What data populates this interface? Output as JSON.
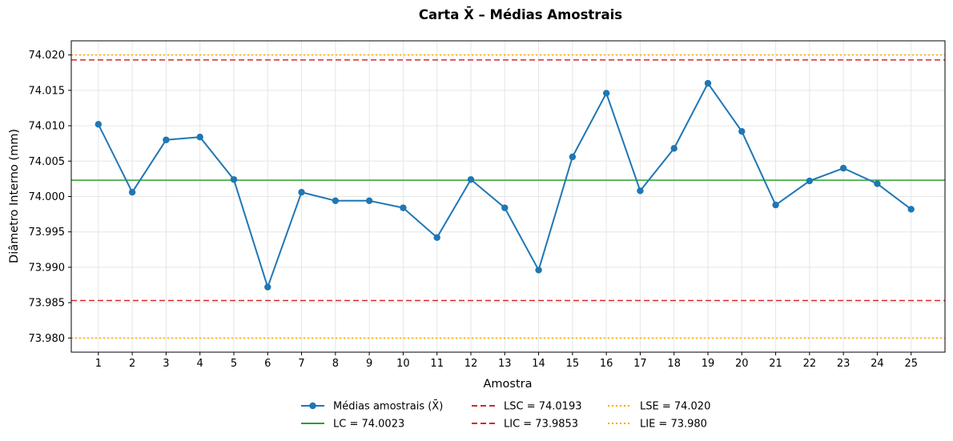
{
  "chart_data": {
    "type": "line",
    "title": "Carta X̄ – Médias Amostrais",
    "xlabel": "Amostra",
    "ylabel": "Diâmetro Interno (mm)",
    "xlim": [
      0.2,
      26.0
    ],
    "ylim": [
      73.978,
      74.022
    ],
    "x_ticks": [
      1,
      2,
      3,
      4,
      5,
      6,
      7,
      8,
      9,
      10,
      11,
      12,
      13,
      14,
      15,
      16,
      17,
      18,
      19,
      20,
      21,
      22,
      23,
      24,
      25
    ],
    "y_ticks": [
      73.98,
      73.985,
      73.99,
      73.995,
      74.0,
      74.005,
      74.01,
      74.015,
      74.02
    ],
    "y_tick_labels": [
      "73.980",
      "73.985",
      "73.990",
      "73.995",
      "74.000",
      "74.005",
      "74.010",
      "74.015",
      "74.020"
    ],
    "grid": true,
    "legend_position": "bottom-center",
    "series": [
      {
        "name": "Médias amostrais (X̄)",
        "color": "#1f77b4",
        "marker": "circle",
        "x": [
          1,
          2,
          3,
          4,
          5,
          6,
          7,
          8,
          9,
          10,
          11,
          12,
          13,
          14,
          15,
          16,
          17,
          18,
          19,
          20,
          21,
          22,
          23,
          24,
          25
        ],
        "values": [
          74.0102,
          74.0006,
          74.008,
          74.0084,
          74.0024,
          73.9872,
          74.0006,
          73.9994,
          73.9994,
          73.9984,
          73.9942,
          74.0024,
          73.9984,
          73.9896,
          74.0056,
          74.0146,
          74.0008,
          74.0068,
          74.016,
          74.0092,
          73.9988,
          74.0022,
          74.004,
          74.0018,
          73.9982
        ]
      }
    ],
    "reference_lines": [
      {
        "name": "LC = 74.0023",
        "value": 74.0023,
        "color": "#2ca02c",
        "style": "solid"
      },
      {
        "name": "LSC = 74.0193",
        "value": 74.0193,
        "color": "#d62728",
        "style": "dashed"
      },
      {
        "name": "LIC = 73.9853",
        "value": 73.9853,
        "color": "#d62728",
        "style": "dashed"
      },
      {
        "name": "LSE = 74.020",
        "value": 74.02,
        "color": "#ffa500",
        "style": "dotted"
      },
      {
        "name": "LIE = 73.980",
        "value": 73.98,
        "color": "#ffa500",
        "style": "dotted"
      }
    ]
  }
}
